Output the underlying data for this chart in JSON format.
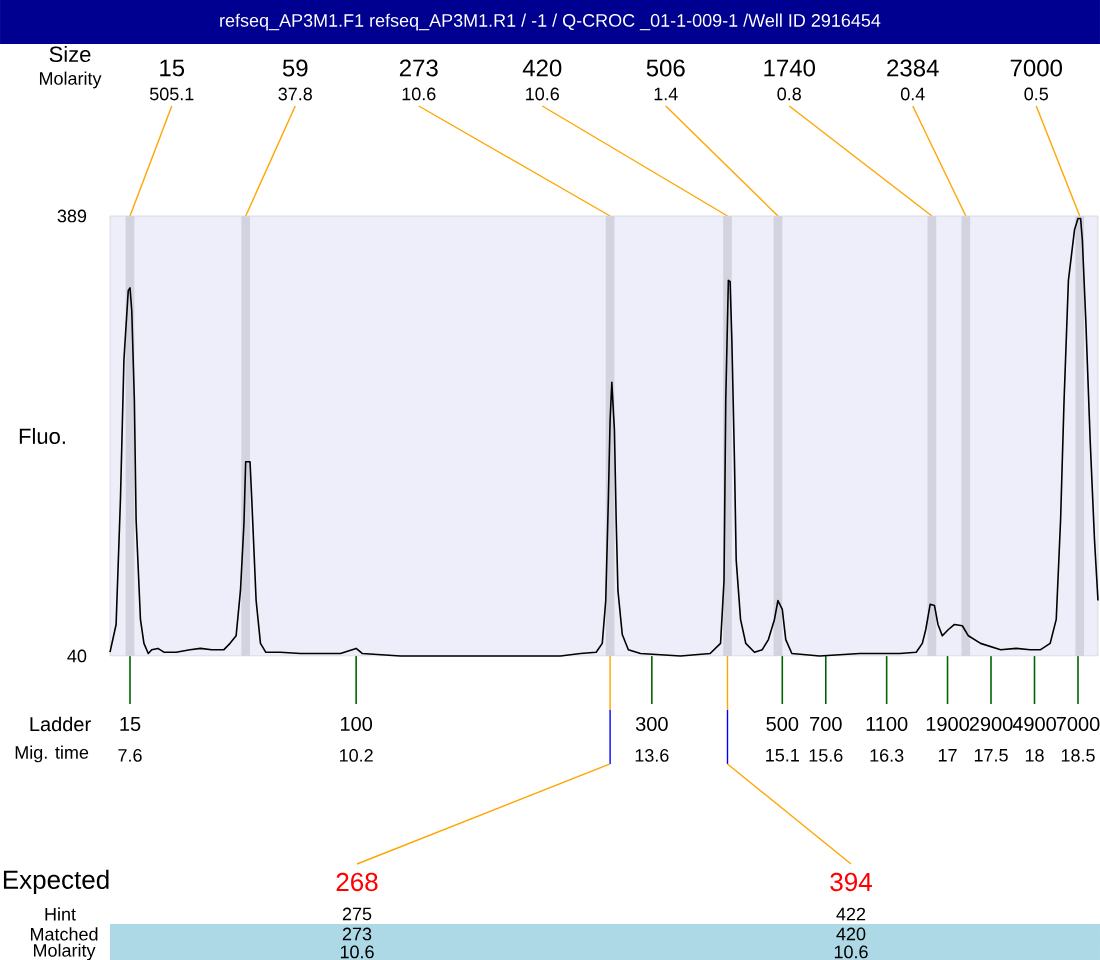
{
  "chart_data": {
    "type": "line",
    "title": "refseq_AP3M1.F1  refseq_AP3M1.R1  / -1  / Q-CROC _01-1-009-1  /Well ID 2916454",
    "xlabel": "Mig. time",
    "ylabel": "Fluo.",
    "color": "#000000",
    "x": [
      7.37,
      7.44,
      7.49,
      7.53,
      7.58,
      7.6,
      7.62,
      7.65,
      7.67,
      7.72,
      7.76,
      7.81,
      7.85,
      7.92,
      7.99,
      8.13,
      8.29,
      8.41,
      8.54,
      8.68,
      8.75,
      8.82,
      8.87,
      8.91,
      8.93,
      8.98,
      9.0,
      9.05,
      9.1,
      9.16,
      9.33,
      9.56,
      10.02,
      10.2,
      10.27,
      10.71,
      11.63,
      12.55,
      12.78,
      12.96,
      13.03,
      13.07,
      13.1,
      13.12,
      13.14,
      13.17,
      13.19,
      13.21,
      13.26,
      13.33,
      13.47,
      13.93,
      14.27,
      14.39,
      14.43,
      14.45,
      14.48,
      14.5,
      14.52,
      14.55,
      14.57,
      14.62,
      14.68,
      14.78,
      14.87,
      14.94,
      15.01,
      15.05,
      15.1,
      15.14,
      15.21,
      15.53,
      15.99,
      16.45,
      16.64,
      16.71,
      16.75,
      16.8,
      16.85,
      16.89,
      16.94,
      17.01,
      17.08,
      17.17,
      17.24,
      17.38,
      17.61,
      17.79,
      17.95,
      18.07,
      18.18,
      18.25,
      18.3,
      18.34,
      18.39,
      18.46,
      18.5,
      18.53,
      18.55,
      18.59,
      18.64,
      18.69,
      18.73
    ],
    "values": [
      43,
      65,
      164,
      275,
      330,
      332,
      314,
      243,
      148,
      69,
      50,
      42,
      45,
      46,
      43,
      43,
      45,
      46,
      45,
      45,
      50,
      56,
      92,
      145,
      194,
      194,
      164,
      84,
      50,
      43,
      43,
      42,
      42,
      46,
      42,
      40,
      40,
      40,
      42,
      43,
      50,
      84,
      164,
      227,
      257,
      219,
      148,
      92,
      57,
      45,
      42,
      40,
      42,
      50,
      100,
      243,
      338,
      337,
      291,
      195,
      116,
      69,
      50,
      43,
      45,
      53,
      69,
      84,
      77,
      53,
      42,
      40,
      42,
      42,
      43,
      50,
      61,
      81,
      80,
      65,
      56,
      61,
      65,
      64,
      56,
      50,
      45,
      46,
      45,
      45,
      50,
      69,
      148,
      243,
      338,
      378,
      387,
      387,
      370,
      306,
      211,
      132,
      84
    ],
    "xlim": [
      7.37,
      18.73
    ],
    "ylim": [
      40,
      389
    ],
    "xticks": [
      7.6,
      10.2,
      13.6,
      15.1,
      15.6,
      16.3,
      17,
      17.5,
      18,
      18.5
    ],
    "yticks": [
      40,
      389
    ],
    "bands": [
      {
        "axis": "x",
        "from": 7.55,
        "to": 7.65,
        "color": "#d3d3e0"
      },
      {
        "axis": "x",
        "from": 8.88,
        "to": 8.98,
        "color": "#d3d3e0"
      },
      {
        "axis": "x",
        "from": 13.07,
        "to": 13.17,
        "color": "#d3d3e0"
      },
      {
        "axis": "x",
        "from": 14.42,
        "to": 14.52,
        "color": "#d3d3e0"
      },
      {
        "axis": "x",
        "from": 15.0,
        "to": 15.1,
        "color": "#d3d3e0"
      },
      {
        "axis": "x",
        "from": 16.77,
        "to": 16.87,
        "color": "#d3d3e0"
      },
      {
        "axis": "x",
        "from": 17.16,
        "to": 17.26,
        "color": "#d3d3e0"
      },
      {
        "axis": "x",
        "from": 18.47,
        "to": 18.57,
        "color": "#d3d3e0"
      }
    ],
    "annotations": [
      "Size",
      {
        "text": "15",
        "x": 7.6,
        "y": 389
      },
      {
        "text": "59",
        "x": 8.93,
        "y": 389
      },
      {
        "text": "273",
        "x": 13.12,
        "y": 389
      },
      {
        "text": "420",
        "x": 14.47,
        "y": 389
      },
      {
        "text": "506",
        "x": 15.05,
        "y": 389
      },
      {
        "text": "1740",
        "x": 16.82,
        "y": 389
      },
      {
        "text": "2384",
        "x": 17.21,
        "y": 389
      },
      {
        "text": "7000",
        "x": 18.52,
        "y": 389
      },
      "Molarity",
      "505.1",
      "37.8",
      "10.6",
      "10.6",
      "1.4",
      "0.8",
      "0.4",
      "0.5",
      "Ladder",
      "15",
      "100",
      "300",
      "500",
      "700",
      "1100",
      "1900",
      "2900",
      "4900",
      "7000",
      "Expected",
      {
        "text": "268",
        "x": 13.12
      },
      {
        "text": "394",
        "x": 14.47
      },
      "Hint",
      "275",
      "422",
      "Matched",
      "273",
      "420",
      "Molarity",
      "10.6",
      "10.6"
    ]
  }
}
